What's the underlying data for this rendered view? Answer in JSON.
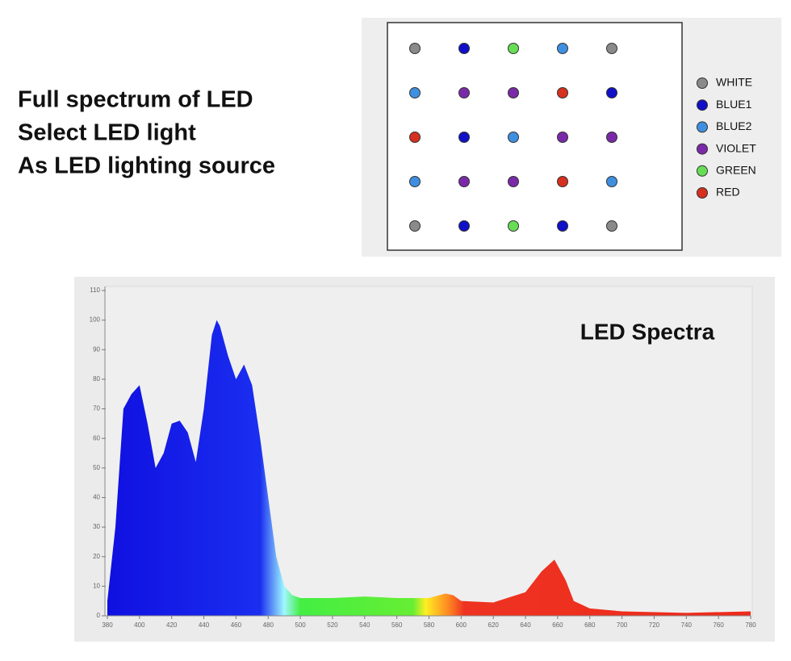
{
  "heading": {
    "lines": [
      "Full spectrum of LED",
      "Select LED light",
      "As LED lighting source"
    ]
  },
  "led_panel": {
    "legend": [
      {
        "label": "WHITE",
        "color": "#8a8a8a"
      },
      {
        "label": "BLUE1",
        "color": "#1010c8"
      },
      {
        "label": "BLUE2",
        "color": "#3f8fe0"
      },
      {
        "label": "VIOLET",
        "color": "#7a2aa8"
      },
      {
        "label": "GREEN",
        "color": "#66dd55"
      },
      {
        "label": "RED",
        "color": "#d63020"
      }
    ],
    "grid": [
      [
        0,
        1,
        4,
        2,
        0
      ],
      [
        2,
        3,
        3,
        5,
        1
      ],
      [
        5,
        1,
        2,
        3,
        3
      ],
      [
        2,
        3,
        3,
        5,
        2
      ],
      [
        0,
        1,
        4,
        1,
        0
      ]
    ]
  },
  "chart_data": {
    "type": "area",
    "title": "LED Spectra",
    "x": [
      380,
      385,
      390,
      395,
      400,
      405,
      410,
      415,
      420,
      425,
      430,
      435,
      440,
      445,
      448,
      450,
      455,
      460,
      465,
      470,
      475,
      480,
      485,
      490,
      495,
      500,
      520,
      540,
      560,
      580,
      590,
      595,
      600,
      620,
      640,
      650,
      658,
      665,
      670,
      680,
      700,
      740,
      780
    ],
    "values": [
      5,
      30,
      70,
      75,
      78,
      65,
      50,
      55,
      65,
      66,
      62,
      52,
      70,
      95,
      100,
      98,
      88,
      80,
      85,
      78,
      60,
      40,
      20,
      10,
      7,
      6,
      6,
      6.5,
      6,
      6,
      7.5,
      7,
      5,
      4.5,
      8,
      15,
      19,
      12,
      5,
      2.5,
      1.5,
      1,
      1.5
    ],
    "fill_stops": [
      {
        "x": 380,
        "color": "#1010e0"
      },
      {
        "x": 475,
        "color": "#1a2ef0"
      },
      {
        "x": 490,
        "color": "#9ff8ff"
      },
      {
        "x": 500,
        "color": "#44ee44"
      },
      {
        "x": 570,
        "color": "#66ee33"
      },
      {
        "x": 578,
        "color": "#ffee22"
      },
      {
        "x": 592,
        "color": "#ff8822"
      },
      {
        "x": 602,
        "color": "#ee3322"
      },
      {
        "x": 780,
        "color": "#ee2a1a"
      }
    ],
    "xlim": [
      380,
      780
    ],
    "xticks": [
      380,
      400,
      420,
      440,
      460,
      480,
      500,
      520,
      540,
      560,
      580,
      600,
      620,
      640,
      660,
      680,
      700,
      720,
      740,
      760,
      780
    ],
    "ylim": [
      0,
      110
    ],
    "yticks": [
      0,
      10,
      20,
      30,
      40,
      50,
      60,
      70,
      80,
      90,
      100,
      110
    ]
  }
}
